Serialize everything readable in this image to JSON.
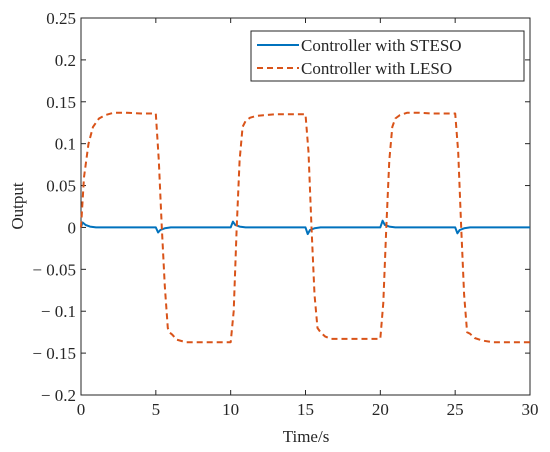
{
  "chart_data": {
    "type": "line",
    "title": "",
    "xlabel": "Time/s",
    "ylabel": "Output",
    "xlim": [
      0,
      30
    ],
    "ylim": [
      -0.2,
      0.25
    ],
    "xticks": [
      0,
      5,
      10,
      15,
      20,
      25,
      30
    ],
    "xtick_labels": [
      "0",
      "5",
      "10",
      "15",
      "20",
      "25",
      "30"
    ],
    "yticks": [
      0.25,
      0.2,
      0.15,
      0.1,
      0.05,
      0,
      -0.05,
      -0.1,
      -0.15,
      -0.2
    ],
    "ytick_labels": [
      "0.25",
      "0.2",
      "0.15",
      "0.1",
      "0.05",
      "0",
      "− 0.05",
      "− 0.1",
      "− 0.15",
      "− 0.2"
    ],
    "grid": false,
    "legend_position": "top-right",
    "series": [
      {
        "name": "Controller with STESO",
        "color": "#0072BD",
        "dash": "solid",
        "x": [
          0,
          0.1,
          0.3,
          0.6,
          1,
          5,
          5.15,
          5.3,
          5.6,
          6,
          10,
          10.15,
          10.3,
          10.6,
          11,
          15,
          15.15,
          15.3,
          15.6,
          16,
          20,
          20.15,
          20.3,
          20.6,
          21,
          25,
          25.15,
          25.3,
          25.6,
          26,
          30
        ],
        "values": [
          0,
          0.006,
          0.003,
          0.001,
          0,
          0,
          -0.006,
          -0.003,
          -0.001,
          0,
          0,
          0.007,
          0.003,
          0.001,
          0,
          0,
          -0.008,
          -0.003,
          -0.001,
          0,
          0,
          0.008,
          0.003,
          0.001,
          0,
          0,
          -0.007,
          -0.003,
          -0.001,
          0,
          0
        ]
      },
      {
        "name": "Controller with LESO",
        "color": "#D95319",
        "dash": "dashed",
        "x": [
          0,
          0.2,
          0.5,
          0.8,
          1.2,
          1.6,
          2.2,
          3,
          4,
          5,
          5.2,
          5.4,
          5.6,
          5.8,
          5.9,
          6.1,
          6.4,
          7,
          8,
          9,
          10,
          10.2,
          10.4,
          10.6,
          10.8,
          11,
          11.3,
          11.7,
          12.2,
          13,
          14,
          15,
          15.2,
          15.4,
          15.6,
          15.8,
          16,
          16.3,
          16.7,
          17.5,
          18.5,
          20,
          20.2,
          20.4,
          20.6,
          20.8,
          21,
          21.3,
          21.8,
          22.5,
          23.5,
          25,
          25.2,
          25.4,
          25.6,
          25.8,
          26,
          26.3,
          26.8,
          27.5,
          28.5,
          30
        ],
        "values": [
          0,
          0.06,
          0.1,
          0.12,
          0.13,
          0.134,
          0.137,
          0.137,
          0.136,
          0.136,
          0.08,
          0,
          -0.07,
          -0.12,
          -0.125,
          -0.128,
          -0.134,
          -0.137,
          -0.137,
          -0.137,
          -0.137,
          -0.1,
          0,
          0.08,
          0.12,
          0.127,
          0.131,
          0.133,
          0.134,
          0.135,
          0.135,
          0.135,
          0.09,
          0,
          -0.08,
          -0.12,
          -0.125,
          -0.13,
          -0.133,
          -0.133,
          -0.133,
          -0.133,
          -0.09,
          0,
          0.08,
          0.12,
          0.13,
          0.134,
          0.137,
          0.137,
          0.136,
          0.136,
          0.09,
          0,
          -0.08,
          -0.125,
          -0.127,
          -0.132,
          -0.135,
          -0.137,
          -0.137,
          -0.137
        ]
      }
    ]
  }
}
